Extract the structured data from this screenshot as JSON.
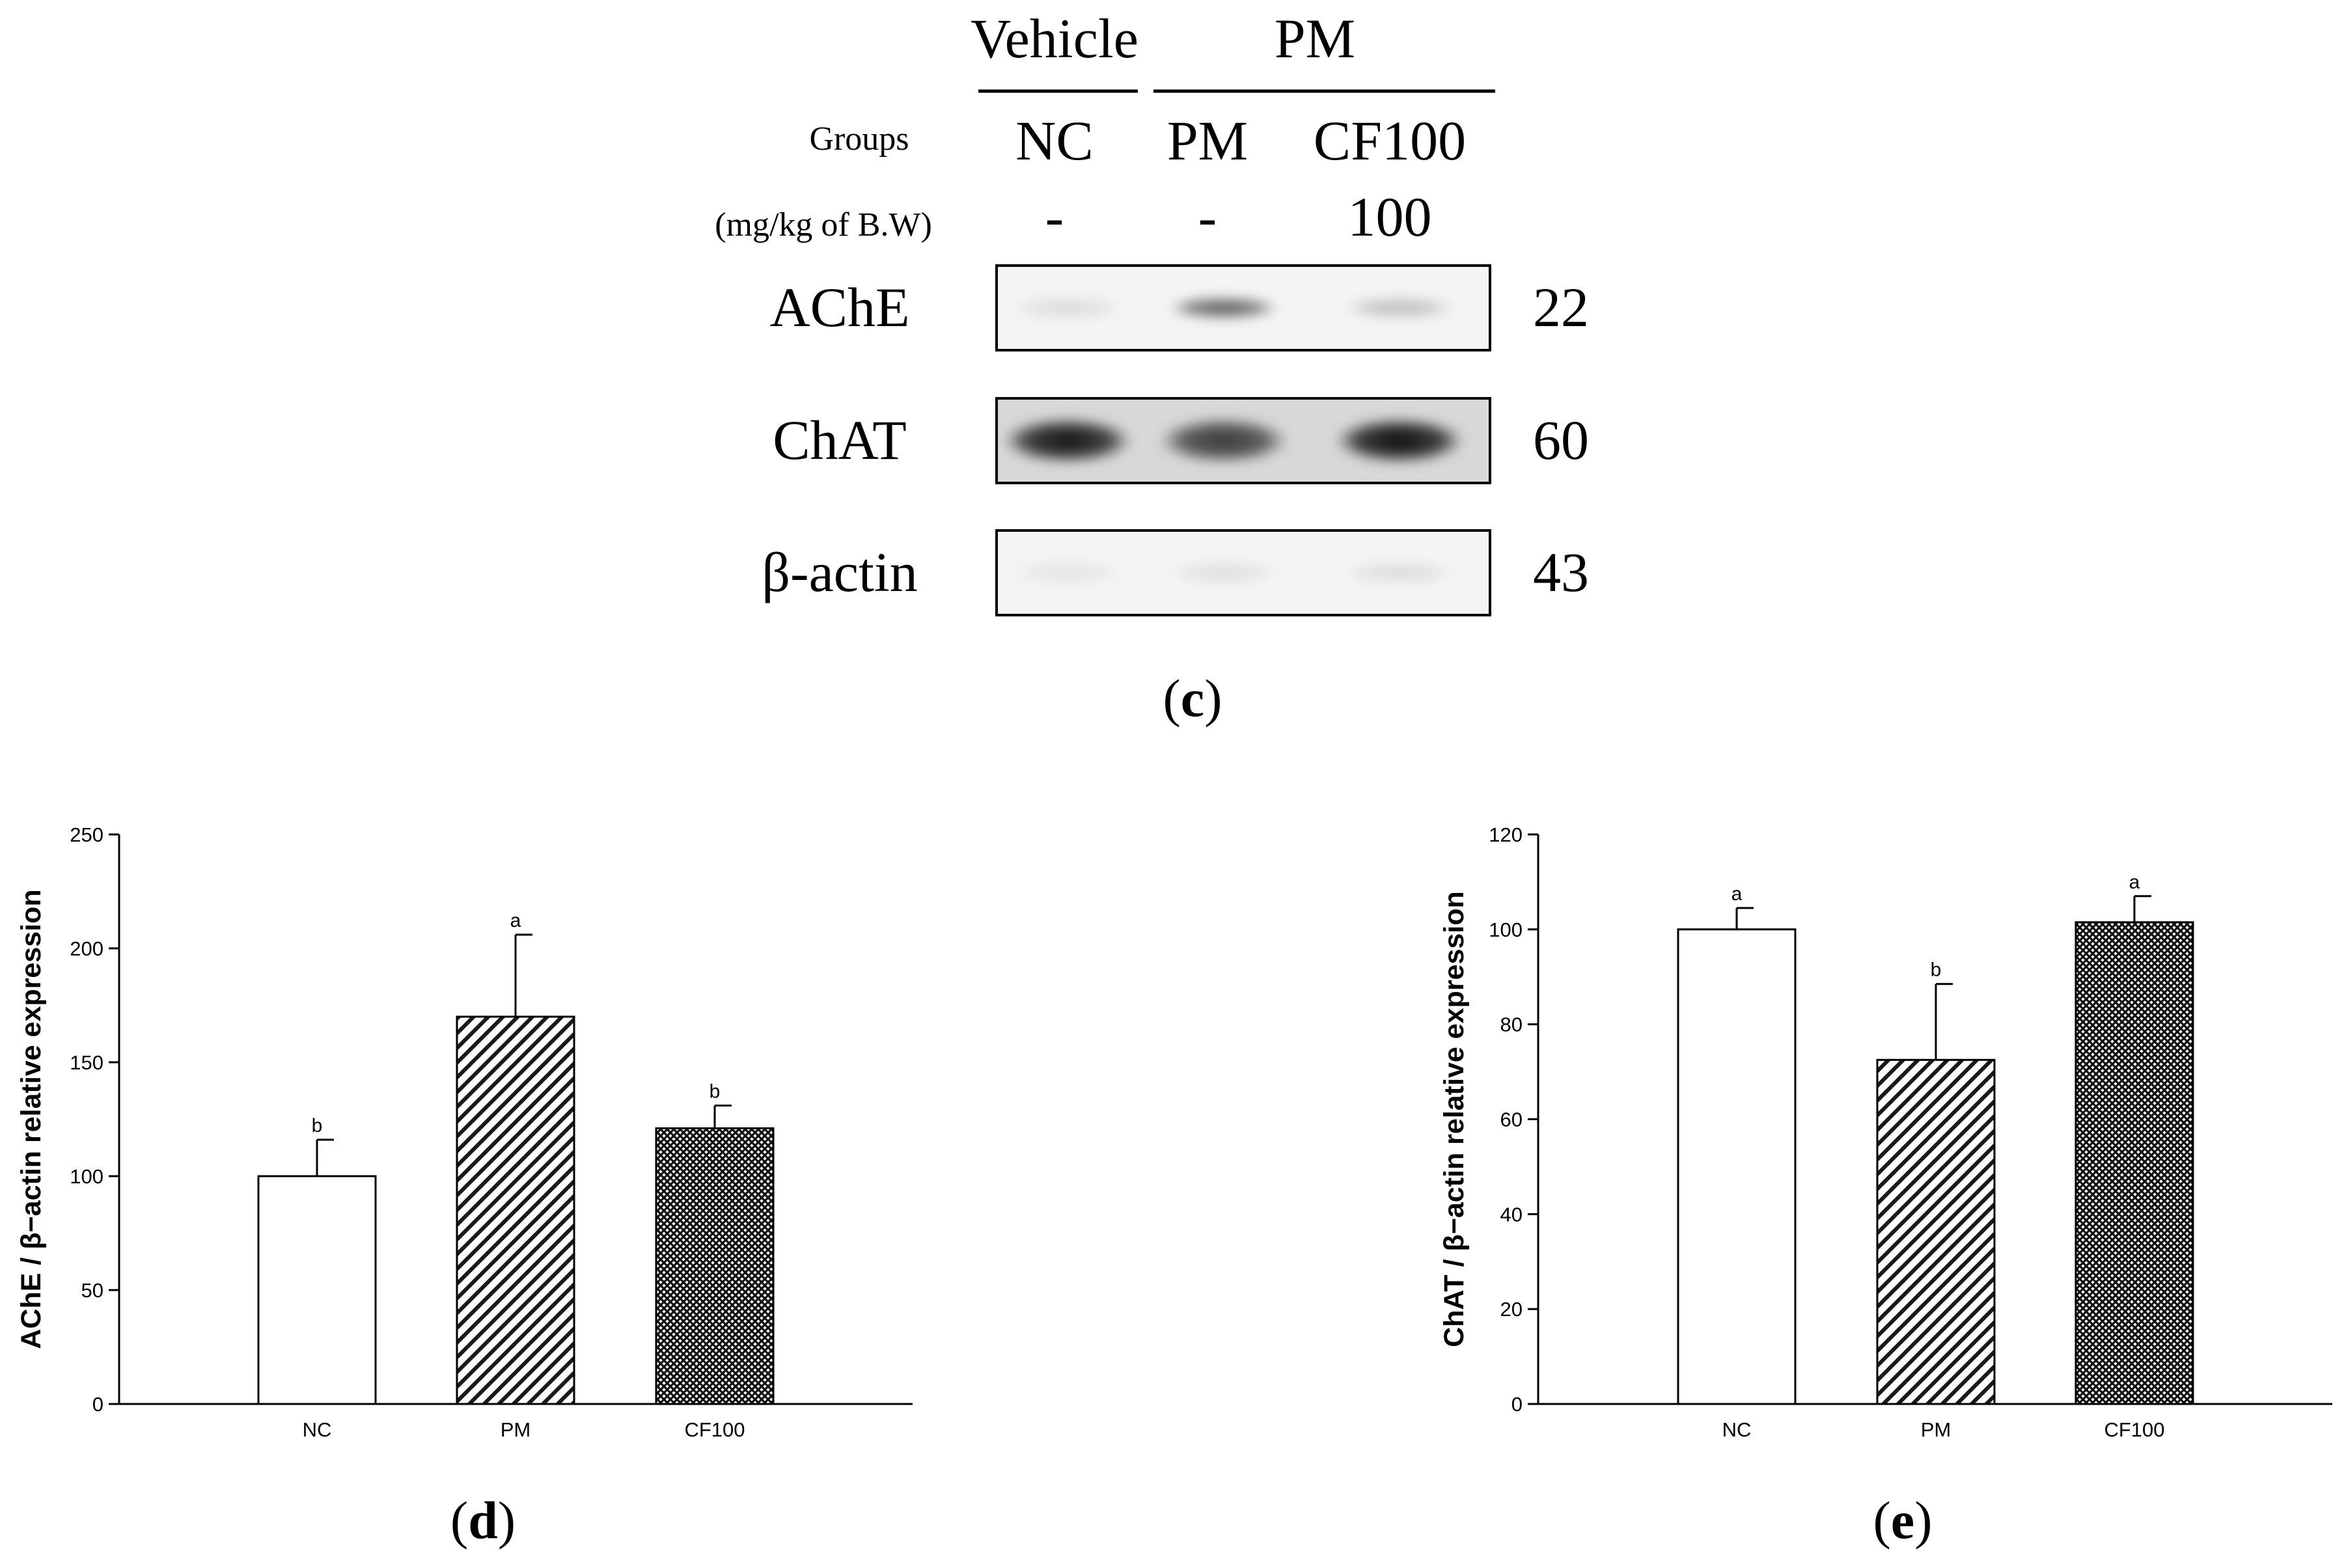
{
  "blot": {
    "header_groups": [
      {
        "label": "Vehicle"
      },
      {
        "label": "PM"
      }
    ],
    "groups_label": "Groups",
    "dose_label": "(mg/kg of B.W)",
    "lanes": [
      {
        "name": "NC",
        "dose": "-"
      },
      {
        "name": "PM",
        "dose": "-"
      },
      {
        "name": "CF100",
        "dose": "100"
      }
    ],
    "proteins": [
      {
        "name": "AChE",
        "kda": "22",
        "intensity": [
          0.1,
          0.62,
          0.22
        ]
      },
      {
        "name": "ChAT",
        "kda": "60",
        "intensity": [
          0.92,
          0.74,
          0.95
        ]
      },
      {
        "name": "β-actin",
        "kda": "43",
        "intensity": [
          0.07,
          0.09,
          0.1
        ]
      }
    ],
    "panel_label": {
      "open": "(",
      "letter": "c",
      "close": ")"
    }
  },
  "chart_data": [
    {
      "type": "bar",
      "panel": {
        "open": "(",
        "letter": "d",
        "close": ")"
      },
      "categories": [
        "NC",
        "PM",
        "CF100"
      ],
      "values": [
        100,
        170,
        121
      ],
      "errors": [
        16,
        36,
        10
      ],
      "significance": [
        "b",
        "a",
        "b"
      ],
      "patterns": [
        "white",
        "diagonal-hatch",
        "crosshatch"
      ],
      "ylabel": "AChE / β−actin relative expression",
      "ylim": [
        0,
        250
      ],
      "yticks": [
        0,
        50,
        100,
        150,
        200,
        250
      ]
    },
    {
      "type": "bar",
      "panel": {
        "open": "(",
        "letter": "e",
        "close": ")"
      },
      "categories": [
        "NC",
        "PM",
        "CF100"
      ],
      "values": [
        100,
        72.5,
        101.5
      ],
      "errors": [
        4.5,
        16,
        5.5
      ],
      "significance": [
        "a",
        "b",
        "a"
      ],
      "patterns": [
        "white",
        "diagonal-hatch",
        "crosshatch"
      ],
      "ylabel": "ChAT / β−actin relative expression",
      "ylim": [
        0,
        120
      ],
      "yticks": [
        0,
        20,
        40,
        60,
        80,
        100,
        120
      ]
    }
  ]
}
